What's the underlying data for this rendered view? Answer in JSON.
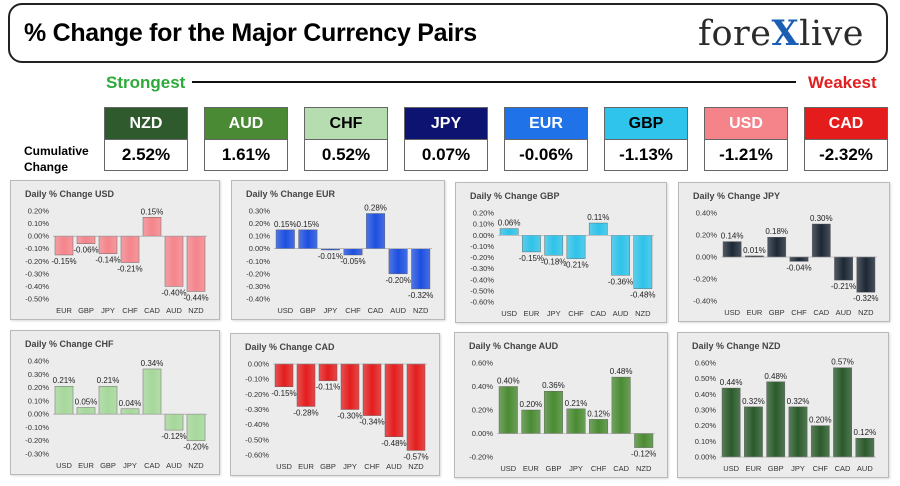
{
  "header": {
    "title": "% Change for the Major Currency Pairs",
    "logo_left": "fore",
    "logo_x": "X",
    "logo_right": "live"
  },
  "ranking": {
    "strongest_label": "Strongest",
    "weakest_label": "Weakest",
    "cumulative_label_line1": "Cumulative",
    "cumulative_label_line2": "Change",
    "currencies": [
      {
        "code": "NZD",
        "value": "2.52%",
        "color": "#2e5a2e",
        "text_color": "#ffffff"
      },
      {
        "code": "AUD",
        "value": "1.61%",
        "color": "#4a8a35",
        "text_color": "#ffffff"
      },
      {
        "code": "CHF",
        "value": "0.52%",
        "color": "#b5ddb0",
        "text_color": "#000000"
      },
      {
        "code": "JPY",
        "value": "0.07%",
        "color": "#0d1370",
        "text_color": "#ffffff"
      },
      {
        "code": "EUR",
        "value": "-0.06%",
        "color": "#1f72e8",
        "text_color": "#ffffff"
      },
      {
        "code": "GBP",
        "value": "-1.13%",
        "color": "#2fc4ec",
        "text_color": "#000000"
      },
      {
        "code": "USD",
        "value": "-1.21%",
        "color": "#f4848a",
        "text_color": "#ffffff"
      },
      {
        "code": "CAD",
        "value": "-2.32%",
        "color": "#e51c1c",
        "text_color": "#ffffff"
      }
    ]
  },
  "chart_data": [
    {
      "type": "bar",
      "title": "Daily % Change USD",
      "categories": [
        "EUR",
        "GBP",
        "JPY",
        "CHF",
        "CAD",
        "AUD",
        "NZD"
      ],
      "values": [
        -0.15,
        -0.06,
        -0.14,
        -0.21,
        0.15,
        -0.4,
        -0.44
      ],
      "labels": [
        "-0.15%",
        "-0.06%",
        "-0.14%",
        "-0.21%",
        "0.15%",
        "-0.40%",
        "-0.44%"
      ],
      "yticks": [
        "0.20%",
        "0.10%",
        "0.00%",
        "-0.10%",
        "-0.20%",
        "-0.30%",
        "-0.40%",
        "-0.50%"
      ],
      "ylim": [
        -0.5,
        0.2
      ],
      "color": "#f4858b",
      "grid": false
    },
    {
      "type": "bar",
      "title": "Daily % Change EUR",
      "categories": [
        "USD",
        "GBP",
        "JPY",
        "CHF",
        "CAD",
        "AUD",
        "NZD"
      ],
      "values": [
        0.15,
        0.15,
        -0.01,
        -0.05,
        0.28,
        -0.2,
        -0.32
      ],
      "labels": [
        "0.15%",
        "0.15%",
        "-0.01%",
        "-0.05%",
        "0.28%",
        "-0.20%",
        "-0.32%"
      ],
      "yticks": [
        "0.30%",
        "0.20%",
        "0.10%",
        "0.00%",
        "-0.10%",
        "-0.20%",
        "-0.30%",
        "-0.40%"
      ],
      "ylim": [
        -0.4,
        0.3
      ],
      "color": "#1d4fe0",
      "grid": false
    },
    {
      "type": "bar",
      "title": "Daily % Change GBP",
      "categories": [
        "USD",
        "EUR",
        "JPY",
        "CHF",
        "CAD",
        "AUD",
        "NZD"
      ],
      "values": [
        0.06,
        -0.15,
        -0.18,
        -0.21,
        0.11,
        -0.36,
        -0.48
      ],
      "labels": [
        "0.06%",
        "-0.15%",
        "-0.18%",
        "-0.21%",
        "0.11%",
        "-0.36%",
        "-0.48%"
      ],
      "yticks": [
        "0.20%",
        "0.10%",
        "0.00%",
        "-0.10%",
        "-0.20%",
        "-0.30%",
        "-0.40%",
        "-0.50%",
        "-0.60%"
      ],
      "ylim": [
        -0.6,
        0.2
      ],
      "color": "#2ec3ea",
      "grid": false
    },
    {
      "type": "bar",
      "title": "Daily % Change JPY",
      "categories": [
        "USD",
        "EUR",
        "GBP",
        "CHF",
        "CAD",
        "AUD",
        "NZD"
      ],
      "values": [
        0.14,
        0.01,
        0.18,
        -0.04,
        0.3,
        -0.21,
        -0.32
      ],
      "labels": [
        "0.14%",
        "0.01%",
        "0.18%",
        "-0.04%",
        "0.30%",
        "-0.21%",
        "-0.32%"
      ],
      "yticks": [
        "0.40%",
        "0.20%",
        "0.00%",
        "-0.20%",
        "-0.40%"
      ],
      "ylim": [
        -0.4,
        0.4
      ],
      "color": "#1d2836",
      "grid": false
    },
    {
      "type": "bar",
      "title": "Daily % Change CHF",
      "categories": [
        "USD",
        "EUR",
        "GBP",
        "JPY",
        "CAD",
        "AUD",
        "NZD"
      ],
      "values": [
        0.21,
        0.05,
        0.21,
        0.04,
        0.34,
        -0.12,
        -0.2
      ],
      "labels": [
        "0.21%",
        "0.05%",
        "0.21%",
        "0.04%",
        "0.34%",
        "-0.12%",
        "-0.20%"
      ],
      "yticks": [
        "0.40%",
        "0.30%",
        "0.20%",
        "0.10%",
        "0.00%",
        "-0.10%",
        "-0.20%",
        "-0.30%"
      ],
      "ylim": [
        -0.3,
        0.4
      ],
      "color": "#a6d89a",
      "grid": false
    },
    {
      "type": "bar",
      "title": "Daily % Change CAD",
      "categories": [
        "USD",
        "EUR",
        "GBP",
        "JPY",
        "CHF",
        "AUD",
        "NZD"
      ],
      "values": [
        -0.15,
        -0.28,
        -0.11,
        -0.3,
        -0.34,
        -0.48,
        -0.57
      ],
      "labels": [
        "-0.15%",
        "-0.28%",
        "-0.11%",
        "-0.30%",
        "-0.34%",
        "-0.48%",
        "-0.57%"
      ],
      "yticks": [
        "0.00%",
        "-0.10%",
        "-0.20%",
        "-0.30%",
        "-0.40%",
        "-0.50%",
        "-0.60%"
      ],
      "ylim": [
        -0.6,
        0.0
      ],
      "color": "#e41e1e",
      "grid": false
    },
    {
      "type": "bar",
      "title": "Daily % Change AUD",
      "categories": [
        "USD",
        "EUR",
        "GBP",
        "JPY",
        "CHF",
        "CAD",
        "NZD"
      ],
      "values": [
        0.4,
        0.2,
        0.36,
        0.21,
        0.12,
        0.48,
        -0.12
      ],
      "labels": [
        "0.40%",
        "0.20%",
        "0.36%",
        "0.21%",
        "0.12%",
        "0.48%",
        "-0.12%"
      ],
      "yticks": [
        "0.60%",
        "0.40%",
        "0.20%",
        "0.00%",
        "-0.20%"
      ],
      "ylim": [
        -0.2,
        0.6
      ],
      "color": "#4a8b32",
      "grid": false
    },
    {
      "type": "bar",
      "title": "Daily % Change NZD",
      "categories": [
        "USD",
        "EUR",
        "GBP",
        "JPY",
        "CHF",
        "CAD",
        "AUD"
      ],
      "values": [
        0.44,
        0.32,
        0.48,
        0.32,
        0.2,
        0.57,
        0.12
      ],
      "labels": [
        "0.44%",
        "0.32%",
        "0.48%",
        "0.32%",
        "0.20%",
        "0.57%",
        "0.12%"
      ],
      "yticks": [
        "0.60%",
        "0.50%",
        "0.40%",
        "0.30%",
        "0.20%",
        "0.10%",
        "0.00%"
      ],
      "ylim": [
        0.0,
        0.6
      ],
      "color": "#2b5a2b",
      "grid": false
    }
  ]
}
